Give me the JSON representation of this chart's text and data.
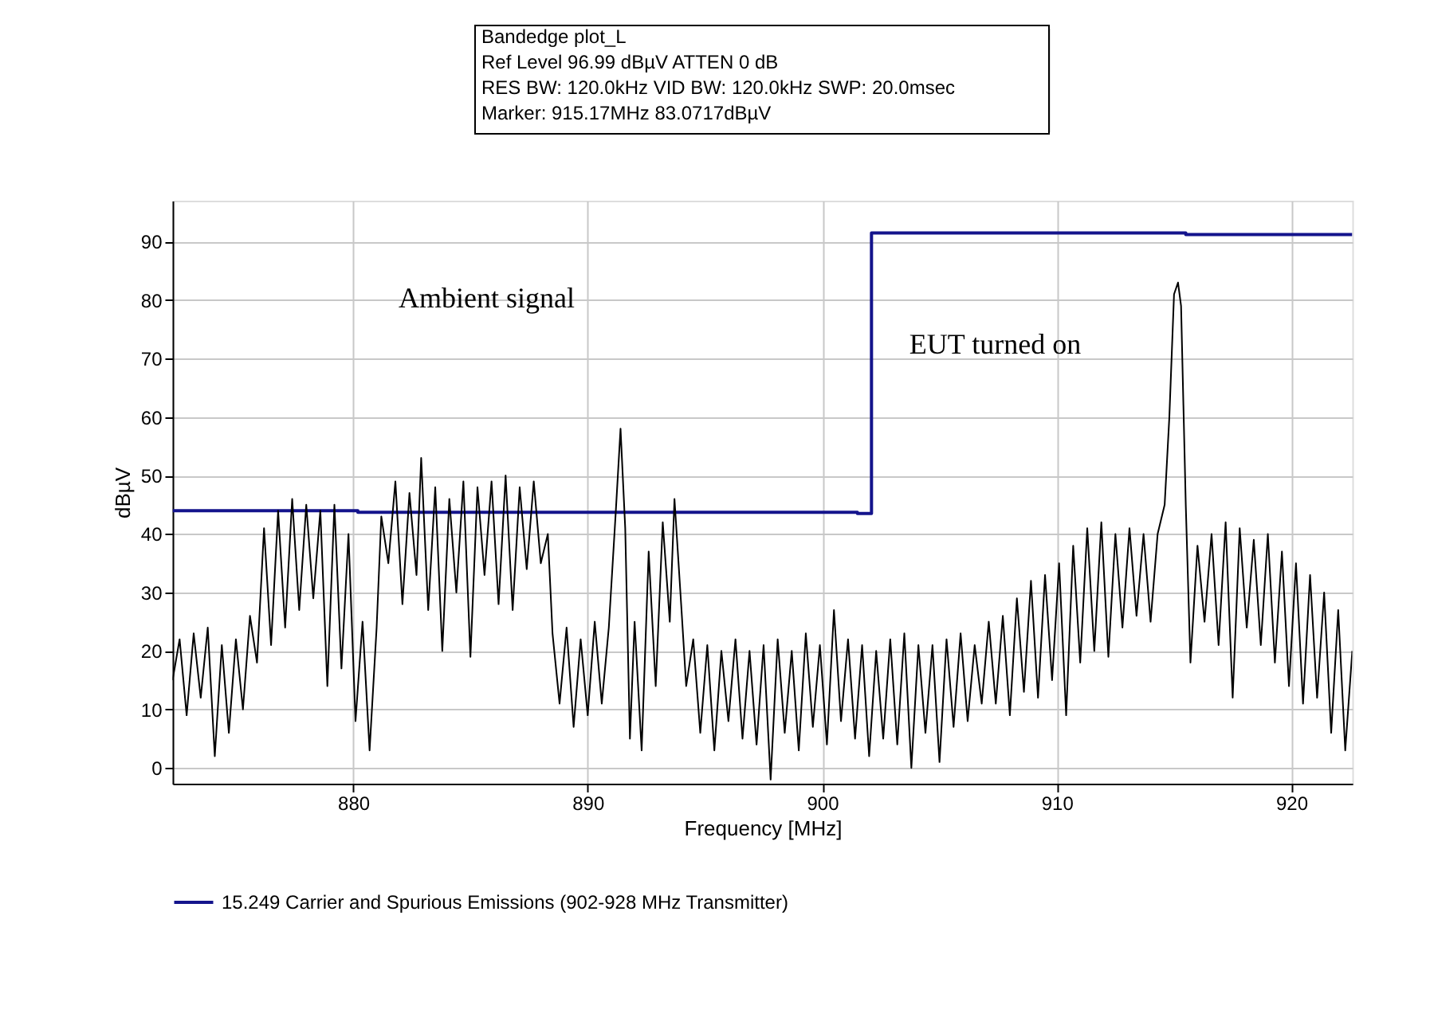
{
  "chart_data": {
    "type": "line",
    "xlabel": "Frequency [MHz]",
    "ylabel": "dBµV",
    "xlim": [
      872.3,
      922.6
    ],
    "xticks": [
      880,
      890,
      900,
      910,
      920
    ],
    "ylim": [
      -2.7,
      97
    ],
    "yticks": [
      0,
      10,
      20,
      30,
      40,
      50,
      60,
      70,
      80,
      90
    ],
    "grid": true,
    "legend": "bottom",
    "marker": "none",
    "line_style": "solid",
    "annotations": [
      "Bandedge plot_L",
      "Ref Level 96.99 dBµV    ATTEN 0 dB",
      "RES BW: 120.0kHz  VID BW: 120.0kHz  SWP: 20.0msec",
      "Marker: 915.17MHz  83.0717dBµV",
      "Ambient signal",
      "EUT turned on"
    ],
    "series": [
      {
        "name": "15.249 Carrier and Spurious Emissions (902-928 MHz Transmitter)",
        "color": "#14148c",
        "type": "step",
        "x": [
          872.3,
          880.2,
          901.5,
          902.1,
          915.5,
          922.6
        ],
        "values": [
          44,
          43.7,
          43.5,
          91.5,
          91.2,
          91.2
        ]
      },
      {
        "color": "#000000",
        "x": [
          872.3,
          872.6,
          872.9,
          873.2,
          873.5,
          873.8,
          874.1,
          874.4,
          874.7,
          875.0,
          875.3,
          875.6,
          875.9,
          876.2,
          876.5,
          876.8,
          877.1,
          877.4,
          877.7,
          878.0,
          878.3,
          878.6,
          878.9,
          879.2,
          879.5,
          879.8,
          880.1,
          880.4,
          880.7,
          881.0,
          881.2,
          881.5,
          881.8,
          882.1,
          882.4,
          882.7,
          882.9,
          883.2,
          883.5,
          883.8,
          884.1,
          884.4,
          884.7,
          885.0,
          885.3,
          885.6,
          885.9,
          886.2,
          886.5,
          886.8,
          887.1,
          887.4,
          887.7,
          888.0,
          888.3,
          888.5,
          888.8,
          889.1,
          889.4,
          889.7,
          890.0,
          890.3,
          890.6,
          890.9,
          891.2,
          891.4,
          891.6,
          891.8,
          892.0,
          892.3,
          892.6,
          892.9,
          893.2,
          893.5,
          893.7,
          894.0,
          894.2,
          894.5,
          894.8,
          895.1,
          895.4,
          895.7,
          896.0,
          896.3,
          896.6,
          896.9,
          897.2,
          897.5,
          897.8,
          898.1,
          898.4,
          898.7,
          899.0,
          899.3,
          899.6,
          899.9,
          900.2,
          900.5,
          900.8,
          901.1,
          901.4,
          901.7,
          902.0,
          902.3,
          902.6,
          902.9,
          903.2,
          903.5,
          903.8,
          904.1,
          904.4,
          904.7,
          905.0,
          905.3,
          905.6,
          905.9,
          906.2,
          906.5,
          906.8,
          907.1,
          907.4,
          907.7,
          908.0,
          908.3,
          908.6,
          908.9,
          909.2,
          909.5,
          909.8,
          910.1,
          910.4,
          910.7,
          911.0,
          911.3,
          911.6,
          911.9,
          912.2,
          912.5,
          912.8,
          913.1,
          913.4,
          913.7,
          914.0,
          914.3,
          914.6,
          914.8,
          915.0,
          915.17,
          915.3,
          915.5,
          915.7,
          916.0,
          916.3,
          916.6,
          916.9,
          917.2,
          917.5,
          917.8,
          918.1,
          918.4,
          918.7,
          919.0,
          919.3,
          919.6,
          919.9,
          920.2,
          920.5,
          920.8,
          921.1,
          921.4,
          921.7,
          922.0,
          922.3,
          922.6
        ],
        "values": [
          15,
          22,
          9,
          23,
          12,
          24,
          2,
          21,
          6,
          22,
          10,
          26,
          18,
          41,
          21,
          44,
          24,
          46,
          27,
          45,
          29,
          44,
          14,
          45,
          17,
          40,
          8,
          25,
          3,
          24,
          43,
          35,
          49,
          28,
          47,
          33,
          53,
          27,
          48,
          20,
          46,
          30,
          49,
          19,
          48,
          33,
          49,
          28,
          50,
          27,
          48,
          34,
          49,
          35,
          40,
          23,
          11,
          24,
          7,
          22,
          9,
          25,
          11,
          24,
          44,
          58,
          41,
          5,
          25,
          3,
          37,
          14,
          42,
          25,
          46,
          27,
          14,
          22,
          6,
          21,
          3,
          20,
          8,
          22,
          5,
          20,
          4,
          21,
          -2,
          22,
          6,
          20,
          3,
          23,
          7,
          21,
          4,
          27,
          8,
          22,
          5,
          21,
          2,
          20,
          5,
          22,
          4,
          23,
          0,
          21,
          6,
          21,
          1,
          22,
          7,
          23,
          8,
          21,
          11,
          25,
          11,
          26,
          9,
          29,
          13,
          32,
          12,
          33,
          15,
          35,
          9,
          38,
          18,
          41,
          20,
          42,
          19,
          40,
          24,
          41,
          26,
          40,
          25,
          40,
          45,
          60,
          81,
          83,
          79,
          45,
          18,
          38,
          25,
          40,
          21,
          42,
          12,
          41,
          24,
          39,
          21,
          40,
          18,
          37,
          14,
          35,
          11,
          33,
          12,
          30,
          6,
          27,
          3,
          20
        ]
      }
    ]
  }
}
